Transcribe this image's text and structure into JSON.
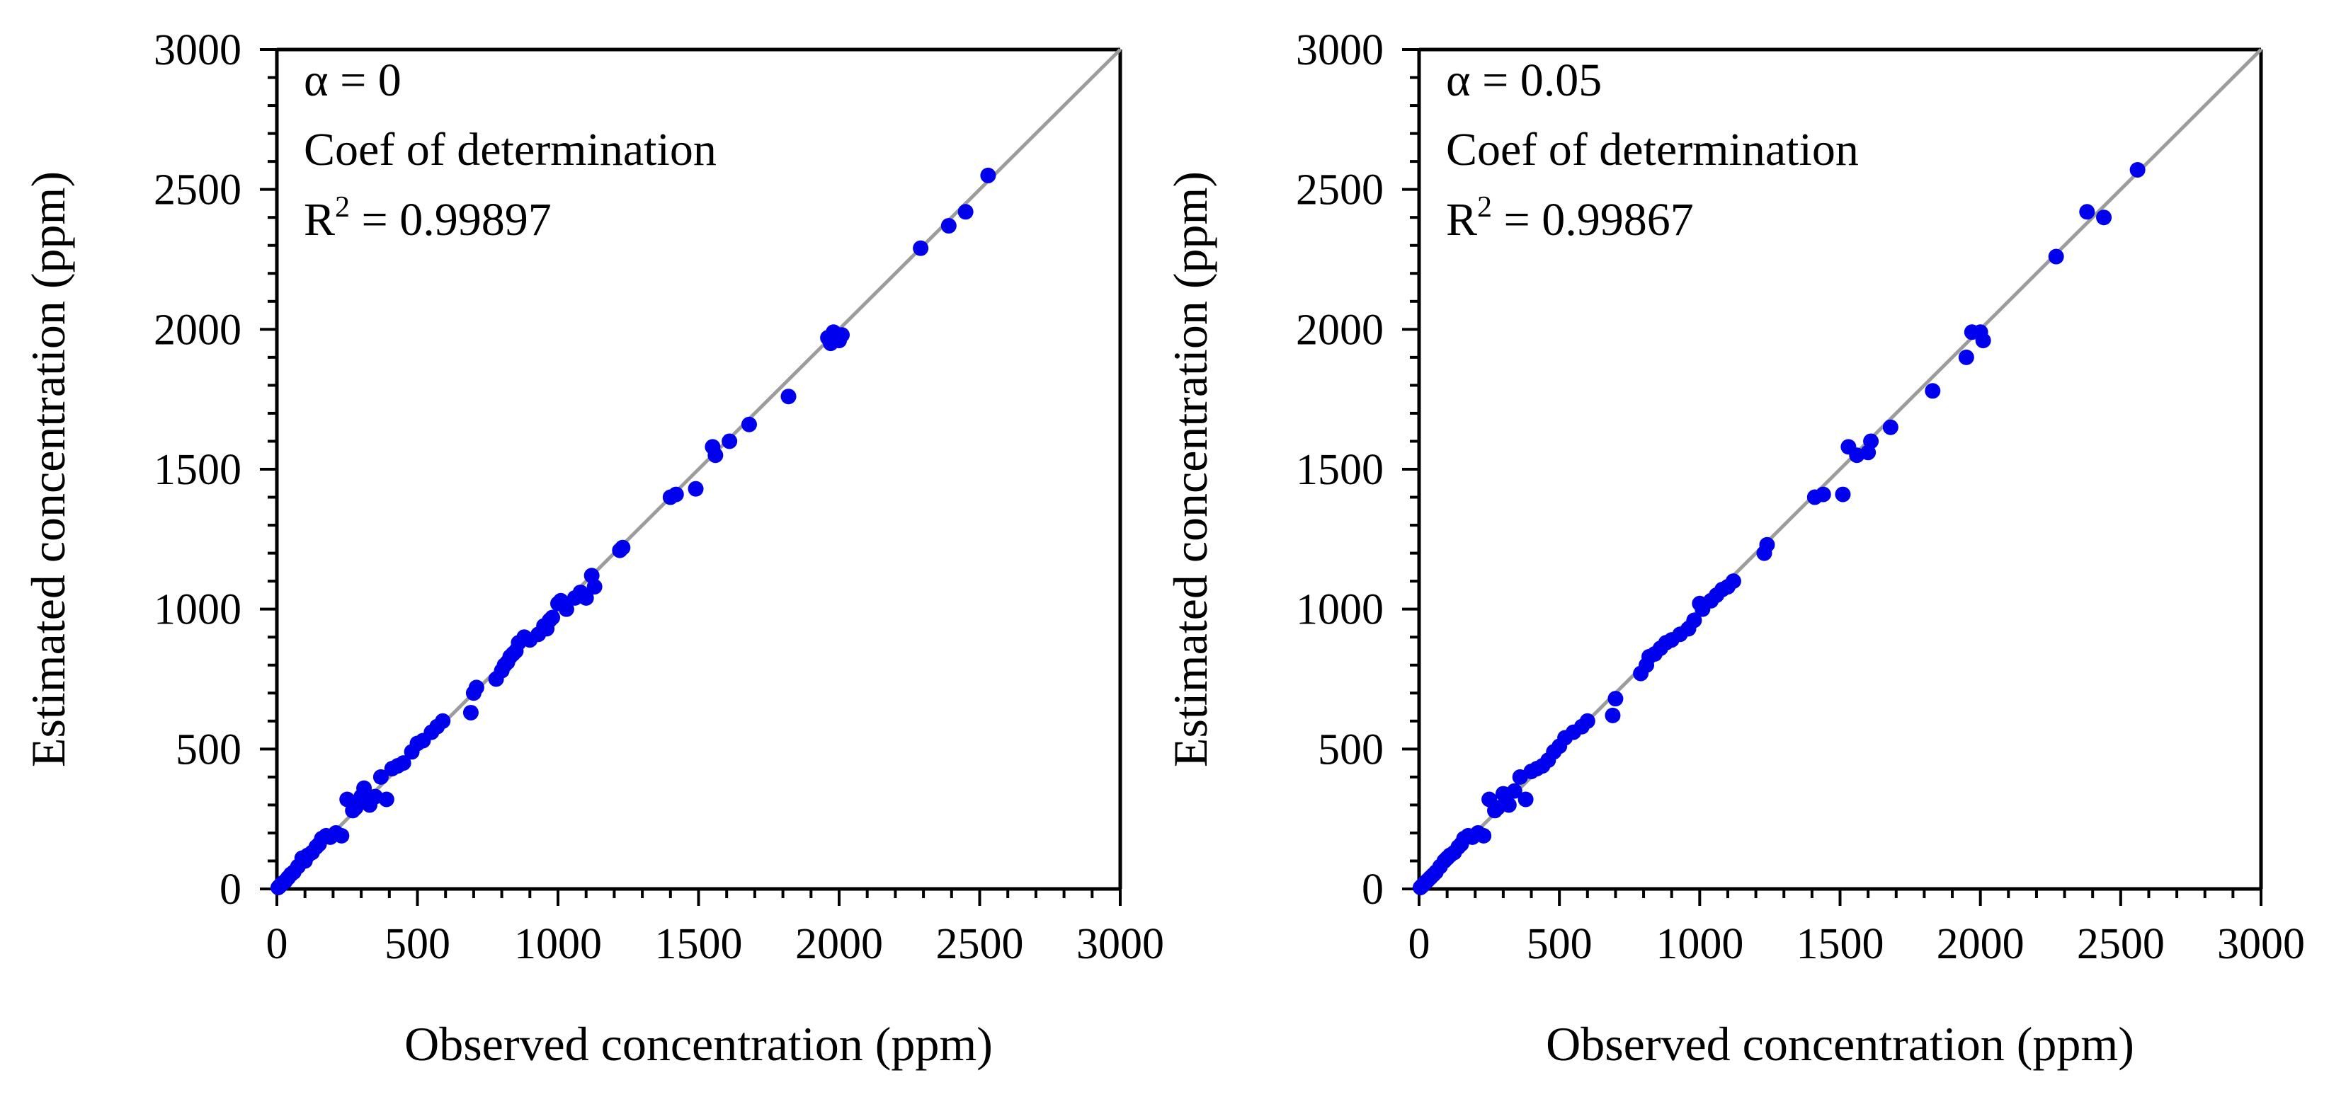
{
  "chart_data": [
    {
      "type": "scatter",
      "xlabel": "Observed concentration (ppm)",
      "ylabel": "Estimated concentration (ppm)",
      "xlim": [
        0,
        3000
      ],
      "ylim": [
        0,
        3000
      ],
      "xticks": [
        "0",
        "500",
        "1000",
        "1500",
        "2000",
        "2500",
        "3000"
      ],
      "yticks": [
        "0",
        "500",
        "1000",
        "1500",
        "2000",
        "2500",
        "3000"
      ],
      "reference_line": "y = x",
      "annotations": [
        "α = 0",
        "Coef of determination",
        "R",
        "2",
        " = 0.99897"
      ],
      "point_color": "#0000ee",
      "line_color": "#9c9c9c",
      "x": [
        5,
        10,
        20,
        30,
        40,
        50,
        60,
        75,
        90,
        100,
        110,
        125,
        140,
        150,
        160,
        175,
        190,
        210,
        230,
        250,
        270,
        280,
        300,
        310,
        330,
        350,
        370,
        390,
        410,
        430,
        450,
        480,
        500,
        520,
        550,
        570,
        590,
        690,
        700,
        710,
        780,
        800,
        810,
        820,
        830,
        840,
        850,
        860,
        880,
        900,
        930,
        950,
        960,
        970,
        980,
        1000,
        1010,
        1030,
        1060,
        1080,
        1100,
        1120,
        1130,
        1220,
        1230,
        1400,
        1420,
        1490,
        1550,
        1560,
        1610,
        1680,
        1820,
        1960,
        1970,
        1980,
        2000,
        2010,
        2290,
        2390,
        2450,
        2530
      ],
      "y": [
        5,
        10,
        20,
        28,
        40,
        52,
        60,
        80,
        110,
        100,
        120,
        130,
        150,
        160,
        180,
        190,
        185,
        200,
        190,
        320,
        280,
        290,
        330,
        360,
        300,
        330,
        400,
        320,
        430,
        440,
        450,
        490,
        520,
        530,
        560,
        580,
        600,
        630,
        700,
        720,
        750,
        780,
        800,
        810,
        830,
        840,
        850,
        880,
        900,
        890,
        910,
        940,
        930,
        960,
        970,
        1020,
        1030,
        1000,
        1040,
        1060,
        1040,
        1120,
        1080,
        1210,
        1220,
        1400,
        1410,
        1430,
        1580,
        1550,
        1600,
        1660,
        1760,
        1970,
        1950,
        1990,
        1960,
        1980,
        2290,
        2370,
        2420,
        2550
      ]
    },
    {
      "type": "scatter",
      "xlabel": "Observed concentration (ppm)",
      "ylabel": "Estimated concentration (ppm)",
      "xlim": [
        0,
        3000
      ],
      "ylim": [
        0,
        3000
      ],
      "xticks": [
        "0",
        "500",
        "1000",
        "1500",
        "2000",
        "2500",
        "3000"
      ],
      "yticks": [
        "0",
        "500",
        "1000",
        "1500",
        "2000",
        "2500",
        "3000"
      ],
      "reference_line": "y = x",
      "annotations": [
        "α = 0.05",
        "Coef of determination",
        "R",
        "2",
        " = 0.99867"
      ],
      "point_color": "#0000ee",
      "line_color": "#9c9c9c",
      "x": [
        5,
        10,
        20,
        30,
        40,
        50,
        60,
        75,
        90,
        100,
        110,
        125,
        140,
        150,
        160,
        175,
        190,
        210,
        230,
        250,
        270,
        280,
        300,
        320,
        340,
        360,
        380,
        400,
        420,
        440,
        460,
        480,
        500,
        520,
        550,
        580,
        600,
        690,
        700,
        790,
        810,
        820,
        840,
        860,
        880,
        900,
        930,
        960,
        980,
        1000,
        1010,
        1040,
        1060,
        1080,
        1100,
        1120,
        1230,
        1240,
        1410,
        1440,
        1510,
        1530,
        1560,
        1600,
        1610,
        1680,
        1830,
        1950,
        1970,
        2000,
        2010,
        2270,
        2380,
        2440,
        2560
      ],
      "y": [
        5,
        10,
        20,
        30,
        40,
        50,
        60,
        80,
        100,
        110,
        120,
        130,
        150,
        160,
        180,
        190,
        185,
        200,
        190,
        320,
        280,
        290,
        340,
        300,
        350,
        400,
        320,
        420,
        430,
        440,
        460,
        490,
        510,
        540,
        560,
        580,
        600,
        620,
        680,
        770,
        800,
        830,
        840,
        860,
        880,
        890,
        910,
        930,
        960,
        1020,
        1000,
        1030,
        1050,
        1070,
        1080,
        1100,
        1200,
        1230,
        1400,
        1410,
        1410,
        1580,
        1550,
        1560,
        1600,
        1650,
        1780,
        1900,
        1990,
        1990,
        1960,
        2260,
        2420,
        2400,
        2570
      ]
    }
  ]
}
